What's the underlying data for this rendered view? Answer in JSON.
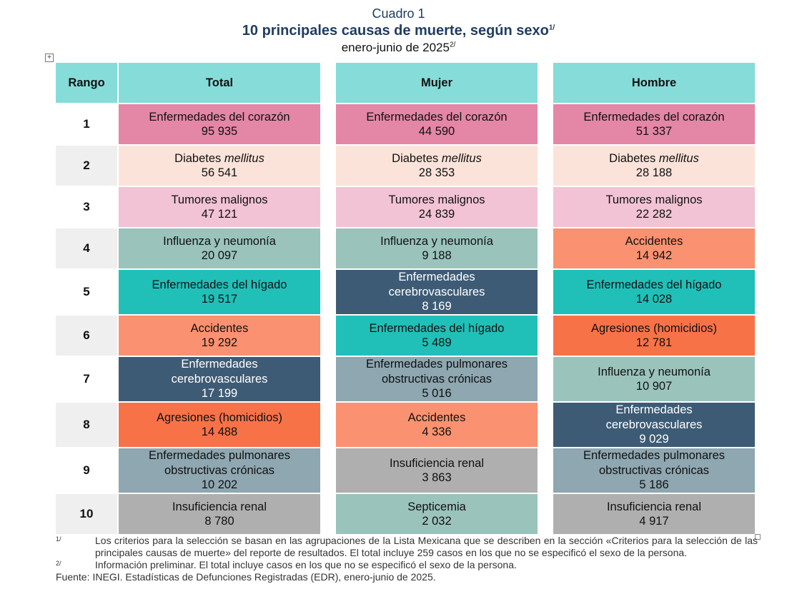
{
  "header": {
    "cuadro": "Cuadro 1",
    "title": "10 principales causas de muerte, según sexo",
    "title_sup": "1/",
    "subtitle": "enero-junio de 2025",
    "subtitle_sup": "2/"
  },
  "expander_symbol": "+",
  "table": {
    "columns": [
      "Rango",
      "Total",
      "Mujer",
      "Hombre"
    ],
    "colors": {
      "corazon": "#e486a6",
      "diabetes": "#fce3da",
      "tumores": "#f2c3d4",
      "influenza": "#9ac3bc",
      "higado": "#20c0b8",
      "cerebro": "#3e5b75",
      "accidentes": "#fa9170",
      "agresiones": "#f87248",
      "pulmonares": "#8ea7b1",
      "renal": "#afafaf",
      "septicemia": "#9ac3bc"
    },
    "rows": [
      {
        "rank": "1",
        "total": {
          "cause": "Enfermedades del corazón",
          "value": "95 935"
        },
        "mujer": {
          "cause": "Enfermedades del corazón",
          "value": "44 590"
        },
        "hombre": {
          "cause": "Enfermedades del corazón",
          "value": "51 337"
        }
      },
      {
        "rank": "2",
        "total": {
          "cause_prefix": "Diabetes ",
          "cause_italic": "mellitus",
          "value": "56 541"
        },
        "mujer": {
          "cause_prefix": "Diabetes ",
          "cause_italic": "mellitus",
          "value": "28 353"
        },
        "hombre": {
          "cause_prefix": "Diabetes ",
          "cause_italic": "mellitus",
          "value": "28 188"
        }
      },
      {
        "rank": "3",
        "total": {
          "cause": "Tumores malignos",
          "value": "47 121"
        },
        "mujer": {
          "cause": "Tumores malignos",
          "value": "24 839"
        },
        "hombre": {
          "cause": "Tumores malignos",
          "value": "22 282"
        }
      },
      {
        "rank": "4",
        "total": {
          "cause": "Influenza y neumonía",
          "value": "20 097"
        },
        "mujer": {
          "cause": "Influenza y neumonía",
          "value": "9 188"
        },
        "hombre": {
          "cause": "Accidentes",
          "value": "14 942"
        }
      },
      {
        "rank": "5",
        "total": {
          "cause": "Enfermedades del hígado",
          "value": "19 517"
        },
        "mujer": {
          "cause_line1": "Enfermedades",
          "cause_line2": "cerebrovasculares",
          "value": "8 169"
        },
        "hombre": {
          "cause": "Enfermedades del hígado",
          "value": "14 028"
        }
      },
      {
        "rank": "6",
        "total": {
          "cause": "Accidentes",
          "value": "19 292"
        },
        "mujer": {
          "cause": "Enfermedades del hígado",
          "value": "5 489"
        },
        "hombre": {
          "cause": "Agresiones (homicidios)",
          "value": "12 781"
        }
      },
      {
        "rank": "7",
        "total": {
          "cause_line1": "Enfermedades",
          "cause_line2": "cerebrovasculares",
          "value": "17 199"
        },
        "mujer": {
          "cause_line1": "Enfermedades pulmonares",
          "cause_line2": "obstructivas crónicas",
          "value": "5 016"
        },
        "hombre": {
          "cause": "Influenza y neumonía",
          "value": "10 907"
        }
      },
      {
        "rank": "8",
        "total": {
          "cause": "Agresiones (homicidios)",
          "value": "14 488"
        },
        "mujer": {
          "cause": "Accidentes",
          "value": "4 336"
        },
        "hombre": {
          "cause_line1": "Enfermedades",
          "cause_line2": "cerebrovasculares",
          "value": "9 029"
        }
      },
      {
        "rank": "9",
        "total": {
          "cause_line1": "Enfermedades pulmonares",
          "cause_line2": "obstructivas crónicas",
          "value": "10 202"
        },
        "mujer": {
          "cause": "Insuficiencia renal",
          "value": "3 863"
        },
        "hombre": {
          "cause_line1": "Enfermedades pulmonares",
          "cause_line2": "obstructivas crónicas",
          "value": "5 186"
        }
      },
      {
        "rank": "10",
        "total": {
          "cause": "Insuficiencia renal",
          "value": "8 780"
        },
        "mujer": {
          "cause": "Septicemia",
          "value": "2 032"
        },
        "hombre": {
          "cause": "Insuficiencia renal",
          "value": "4 917"
        }
      }
    ]
  },
  "notes": [
    {
      "mark": "1/",
      "text": "Los criterios para la selección se basan en las agrupaciones de la Lista Mexicana que se describen en la sección «Criterios para la selección de las principales causas de muerte» del reporte de resultados. El total incluye 259 casos en los que no se especificó el sexo de la persona."
    },
    {
      "mark": "2/",
      "text": "Información preliminar. El total incluye casos en los que no se especificó el sexo de la persona."
    }
  ],
  "source": {
    "label": "Fuente:",
    "text": "INEGI. Estadísticas de Defunciones Registradas (EDR), enero-junio de 2025."
  }
}
